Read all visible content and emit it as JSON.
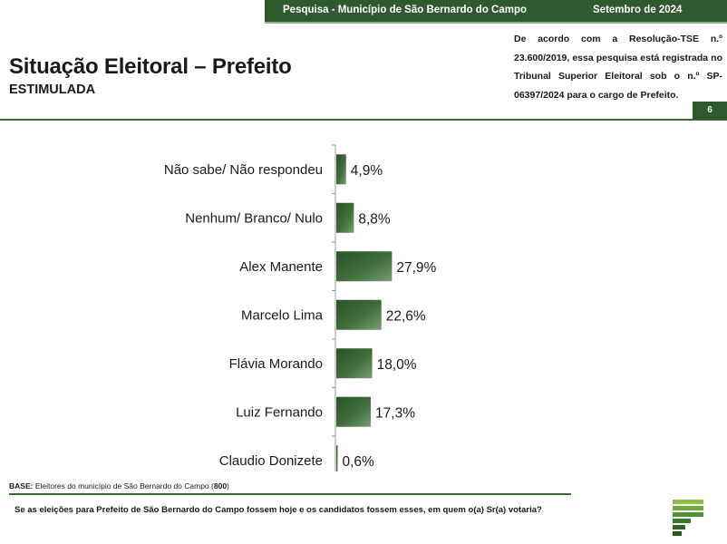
{
  "header": {
    "survey": "Pesquisa - Município de São Bernardo do Campo",
    "date": "Setembro de 2024"
  },
  "title": "Situação Eleitoral – Prefeito",
  "subtitle": "ESTIMULADA",
  "registration_note": "De acordo com a Resolução-TSE n.º 23.600/2019, essa pesquisa está registrada no Tribunal Superior Eleitoral sob o n.º SP-06397/2024 para o cargo de Prefeito.",
  "page_number": "6",
  "colors": {
    "brand": "#2f5a2e",
    "bar": "#3d6b3a",
    "rule": "#3a6b36"
  },
  "base": {
    "label": "BASE:",
    "text": "Eleitores do município de São Bernardo do Campo",
    "n": "800"
  },
  "question": "Se as eleições para Prefeito de São Bernardo do Campo fossem hoje e os candidatos fossem esses, em quem o(a) Sr(a) votaria?",
  "logo_icon": "striped-p-logo-icon",
  "chart_data": {
    "type": "bar",
    "orientation": "horizontal",
    "title": "",
    "xlabel": "",
    "ylabel": "",
    "categories": [
      "Não sabe/ Não respondeu",
      "Nenhum/ Branco/ Nulo",
      "Alex Manente",
      "Marcelo Lima",
      "Flávia Morando",
      "Luiz Fernando",
      "Claudio Donizete"
    ],
    "values": [
      4.9,
      8.8,
      27.9,
      22.6,
      18.0,
      17.3,
      0.6
    ],
    "value_labels": [
      "4,9%",
      "8,8%",
      "27,9%",
      "22,6%",
      "18,0%",
      "17,3%",
      "0,6%"
    ],
    "unit": "%",
    "grid": false,
    "legend": "none"
  }
}
